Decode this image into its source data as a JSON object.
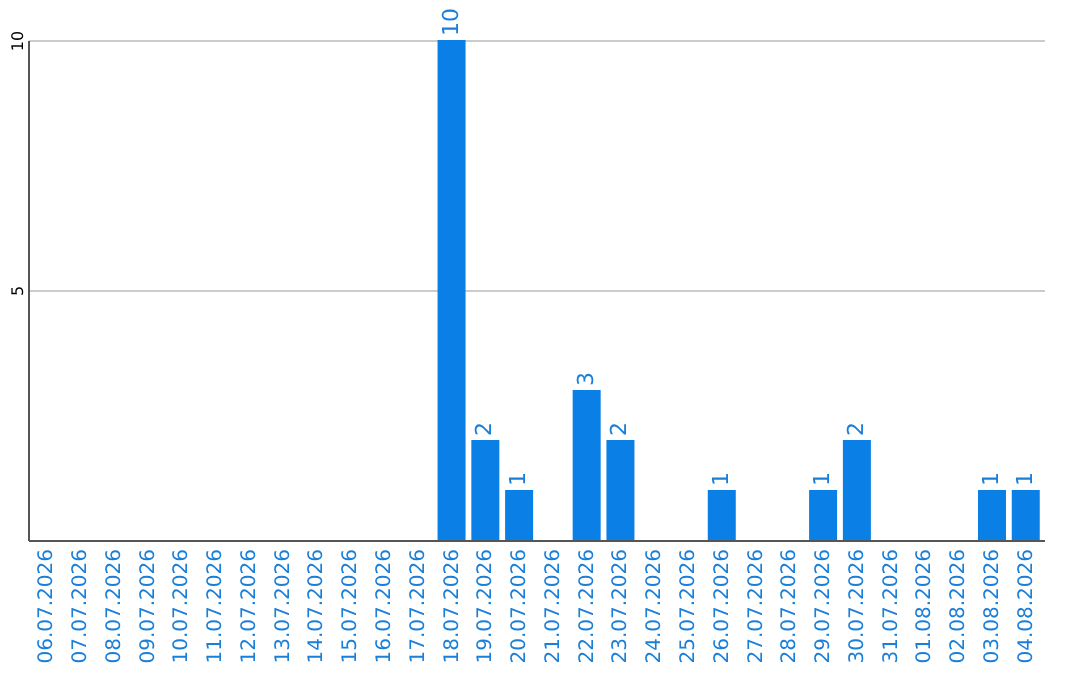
{
  "chart_data": {
    "type": "bar",
    "categories": [
      "06.07.2026",
      "07.07.2026",
      "08.07.2026",
      "09.07.2026",
      "10.07.2026",
      "11.07.2026",
      "12.07.2026",
      "13.07.2026",
      "14.07.2026",
      "15.07.2026",
      "16.07.2026",
      "17.07.2026",
      "18.07.2026",
      "19.07.2026",
      "20.07.2026",
      "21.07.2026",
      "22.07.2026",
      "23.07.2026",
      "24.07.2026",
      "25.07.2026",
      "26.07.2026",
      "27.07.2026",
      "28.07.2026",
      "29.07.2026",
      "30.07.2026",
      "31.07.2026",
      "01.08.2026",
      "02.08.2026",
      "03.08.2026",
      "04.08.2026"
    ],
    "values": [
      0,
      0,
      0,
      0,
      0,
      0,
      0,
      0,
      0,
      0,
      0,
      0,
      10,
      2,
      1,
      0,
      3,
      2,
      0,
      0,
      1,
      0,
      0,
      1,
      2,
      0,
      0,
      0,
      1,
      1
    ],
    "value_labels": [
      null,
      null,
      null,
      null,
      null,
      null,
      null,
      null,
      null,
      null,
      null,
      null,
      "10",
      "2",
      "1",
      null,
      "3",
      "2",
      null,
      null,
      "1",
      null,
      null,
      "1",
      "2",
      null,
      null,
      null,
      "1",
      "1"
    ],
    "color": "#0a7fe6",
    "ylim": [
      0,
      10
    ],
    "yticks": [
      5,
      10
    ],
    "grid": "y"
  }
}
